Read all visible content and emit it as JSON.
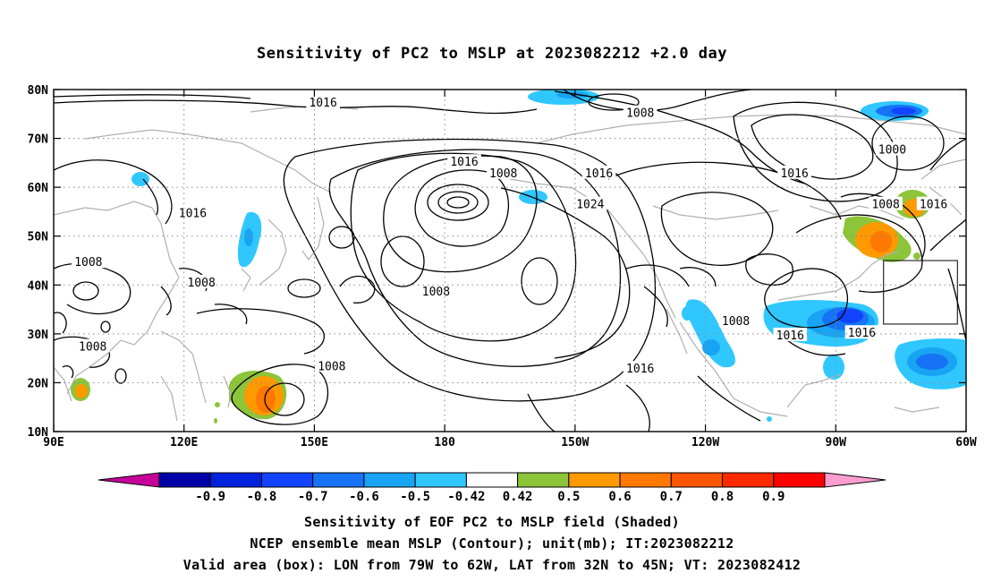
{
  "title": "Sensitivity of PC2 to MSLP at 2023082212 +2.0 day",
  "captions": [
    "Sensitivity of EOF PC2 to MSLP field (Shaded)",
    "NCEP ensemble mean MSLP (Contour); unit(mb); IT:2023082212",
    "Valid area (box): LON from 79W to 62W, LAT from 32N to 45N; VT: 2023082412"
  ],
  "map": {
    "lon_range": [
      90,
      300
    ],
    "lat_range": [
      10,
      80
    ],
    "lat_ticks": [
      {
        "lat": 80,
        "label": "80N"
      },
      {
        "lat": 70,
        "label": "70N"
      },
      {
        "lat": 60,
        "label": "60N"
      },
      {
        "lat": 50,
        "label": "50N"
      },
      {
        "lat": 40,
        "label": "40N"
      },
      {
        "lat": 30,
        "label": "30N"
      },
      {
        "lat": 20,
        "label": "20N"
      },
      {
        "lat": 10,
        "label": "10N"
      }
    ],
    "lon_ticks": [
      {
        "lon": 90,
        "label": "90E"
      },
      {
        "lon": 120,
        "label": "120E"
      },
      {
        "lon": 150,
        "label": "150E"
      },
      {
        "lon": 180,
        "label": "180"
      },
      {
        "lon": 210,
        "label": "150W"
      },
      {
        "lon": 240,
        "label": "120W"
      },
      {
        "lon": 270,
        "label": "90W"
      },
      {
        "lon": 300,
        "label": "60W"
      }
    ],
    "valid_box": {
      "lon_min": 281,
      "lon_max": 298,
      "lat_min": 32,
      "lat_max": 45
    },
    "contour_labels": [
      {
        "text": "1016",
        "lon": 152,
        "lat": 77.4
      },
      {
        "text": "1008",
        "lon": 225,
        "lat": 75.3
      },
      {
        "text": "1000",
        "lon": 283,
        "lat": 67.8
      },
      {
        "text": "1016",
        "lon": 184.5,
        "lat": 65.3
      },
      {
        "text": "1008",
        "lon": 193.5,
        "lat": 63.0
      },
      {
        "text": "1016",
        "lon": 215.5,
        "lat": 63.0
      },
      {
        "text": "1016",
        "lon": 260.5,
        "lat": 63.0
      },
      {
        "text": "1016",
        "lon": 122,
        "lat": 54.8
      },
      {
        "text": "1024",
        "lon": 213.5,
        "lat": 56.6
      },
      {
        "text": "1008",
        "lon": 281.5,
        "lat": 56.6
      },
      {
        "text": "1016",
        "lon": 292.5,
        "lat": 56.6
      },
      {
        "text": "1008",
        "lon": 98,
        "lat": 44.8
      },
      {
        "text": "1008",
        "lon": 124,
        "lat": 40.6
      },
      {
        "text": "1008",
        "lon": 178,
        "lat": 38.8
      },
      {
        "text": "1008",
        "lon": 99,
        "lat": 27.5
      },
      {
        "text": "1008",
        "lon": 247,
        "lat": 32.7
      },
      {
        "text": "1016",
        "lon": 259.5,
        "lat": 29.8
      },
      {
        "text": "1016",
        "lon": 276,
        "lat": 30.3
      },
      {
        "text": "1008",
        "lon": 154,
        "lat": 23.5
      },
      {
        "text": "1016",
        "lon": 225,
        "lat": 23.0
      }
    ]
  },
  "colorbar": {
    "colors": [
      "#c8009a",
      "#0000a8",
      "#0022dd",
      "#1244ff",
      "#1673f5",
      "#18a4f2",
      "#30c7ff",
      "#ffffff",
      "#8cc43a",
      "#ff9900",
      "#ff7800",
      "#ff5500",
      "#ff2a00",
      "#ff0000",
      "#ff9dd0"
    ],
    "labels": [
      "-0.9",
      "-0.8",
      "-0.7",
      "-0.6",
      "-0.5",
      "-0.42",
      "0.42",
      "0.5",
      "0.6",
      "0.7",
      "0.8",
      "0.9"
    ]
  }
}
